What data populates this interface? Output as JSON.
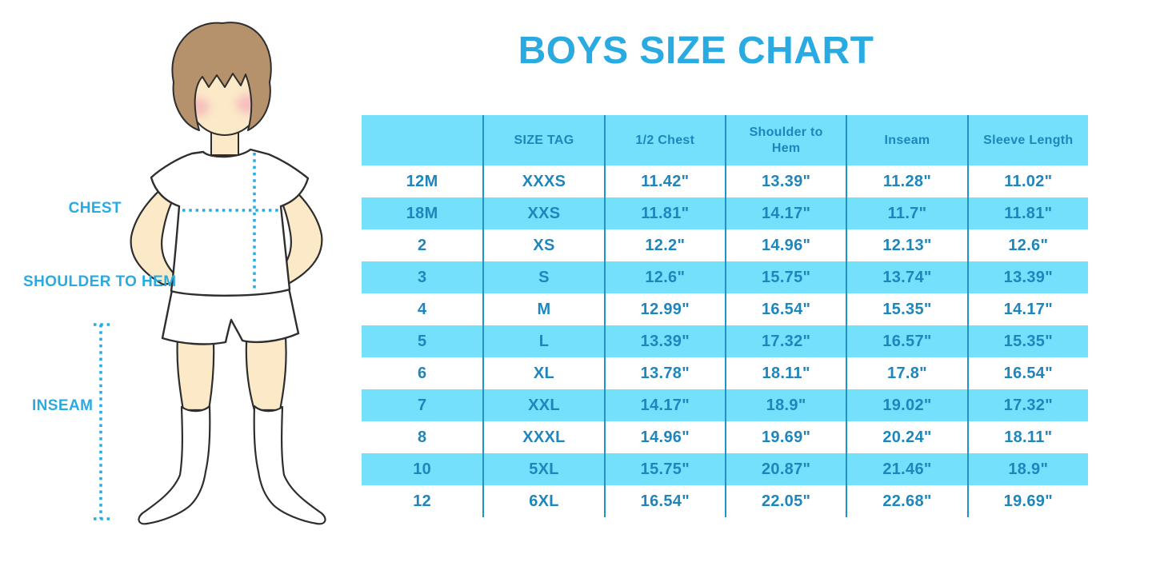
{
  "title": "BOYS SIZE CHART",
  "figure": {
    "description": "boy-with-measurement-lines",
    "labels": {
      "chest": "CHEST",
      "shoulder_to_hem": "SHOULDER TO HEM",
      "inseam": "INSEAM"
    }
  },
  "colors": {
    "accent_blue": "#29ABE2",
    "table_text_blue": "#1E86BC",
    "row_highlight_blue": "#74E0FB",
    "divider_blue": "#2193C7",
    "skin": "#FBE9C8",
    "hair_brown": "#B5916C",
    "blush_pink": "#F29EB6"
  },
  "chart_data": {
    "type": "table",
    "title": "BOYS SIZE CHART",
    "columns": [
      "",
      "SIZE TAG",
      "1/2 Chest",
      "Shoulder to Hem",
      "Inseam",
      "Sleeve Length"
    ],
    "rows": [
      [
        "12M",
        "XXXS",
        "11.42\"",
        "13.39\"",
        "11.28\"",
        "11.02\""
      ],
      [
        "18M",
        "XXS",
        "11.81\"",
        "14.17\"",
        "11.7\"",
        "11.81\""
      ],
      [
        "2",
        "XS",
        "12.2\"",
        "14.96\"",
        "12.13\"",
        "12.6\""
      ],
      [
        "3",
        "S",
        "12.6\"",
        "15.75\"",
        "13.74\"",
        "13.39\""
      ],
      [
        "4",
        "M",
        "12.99\"",
        "16.54\"",
        "15.35\"",
        "14.17\""
      ],
      [
        "5",
        "L",
        "13.39\"",
        "17.32\"",
        "16.57\"",
        "15.35\""
      ],
      [
        "6",
        "XL",
        "13.78\"",
        "18.11\"",
        "17.8\"",
        "16.54\""
      ],
      [
        "7",
        "XXL",
        "14.17\"",
        "18.9\"",
        "19.02\"",
        "17.32\""
      ],
      [
        "8",
        "XXXL",
        "14.96\"",
        "19.69\"",
        "20.24\"",
        "18.11\""
      ],
      [
        "10",
        "5XL",
        "15.75\"",
        "20.87\"",
        "21.46\"",
        "18.9\""
      ],
      [
        "12",
        "6XL",
        "16.54\"",
        "22.05\"",
        "22.68\"",
        "19.69\""
      ]
    ],
    "layout": {
      "striping": "header and alternate rows light blue, others white",
      "column_dividers": "vertical blue lines between all 6 columns, no outer border"
    }
  }
}
